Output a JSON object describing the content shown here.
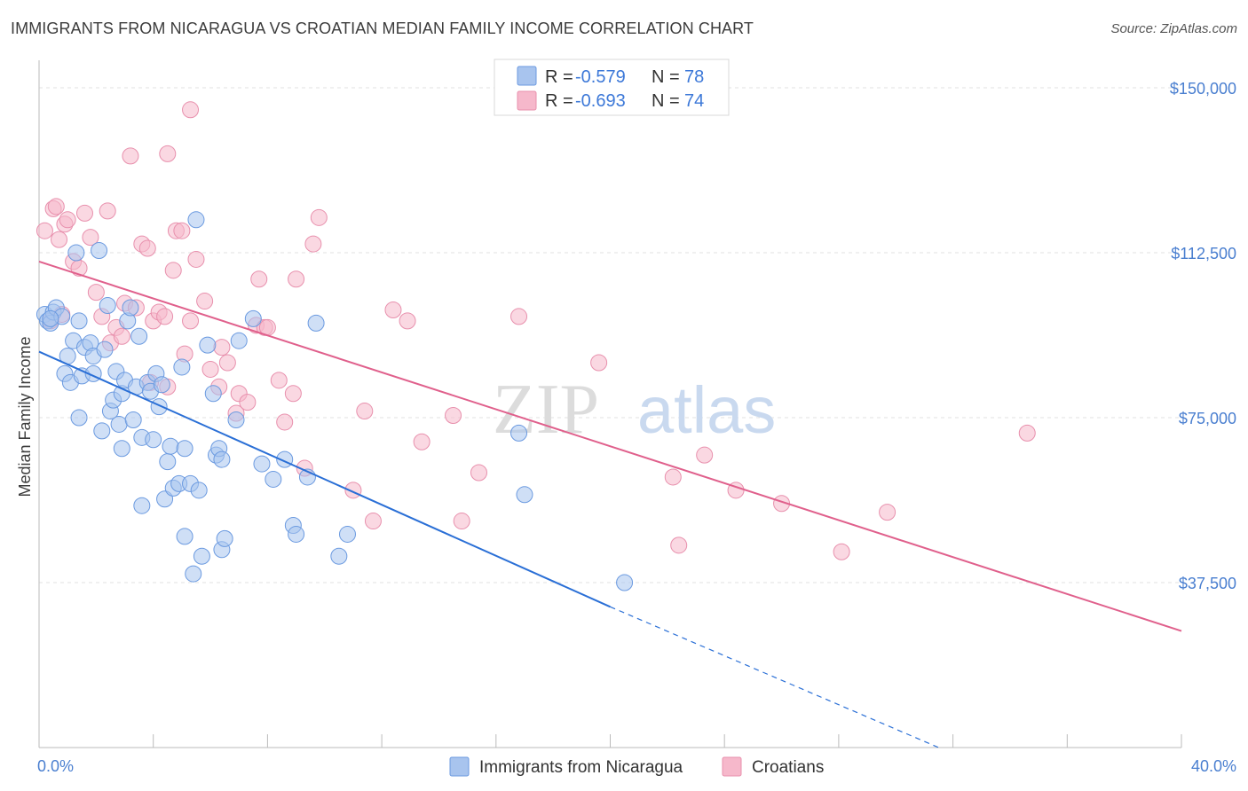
{
  "header": {
    "title": "IMMIGRANTS FROM NICARAGUA VS CROATIAN MEDIAN FAMILY INCOME CORRELATION CHART",
    "source": "Source: ZipAtlas.com"
  },
  "watermark": {
    "part1": "ZIP",
    "part2": "atlas"
  },
  "legend_top": [
    {
      "r_label": "R =",
      "r_value": "-0.579",
      "n_label": "N =",
      "n_value": "78",
      "color": "#a8c4ee"
    },
    {
      "r_label": "R =",
      "r_value": "-0.693",
      "n_label": "N =",
      "n_value": "74",
      "color": "#f6b8cb"
    }
  ],
  "legend_bottom": [
    {
      "label": "Immigrants from Nicaragua",
      "color": "#a8c4ee"
    },
    {
      "label": "Croatians",
      "color": "#f6b8cb"
    }
  ],
  "colors": {
    "blue_fill": "#a8c4ee",
    "blue_stroke": "#6b9ae0",
    "blue_line": "#2a6fd6",
    "pink_fill": "#f6b8cb",
    "pink_stroke": "#e890ad",
    "pink_line": "#e0608c",
    "grid": "#e2e2e2",
    "tick_text": "#4a7fd0"
  },
  "chart_data": {
    "type": "scatter",
    "ylabel": "Median Family Income",
    "xlabel": "",
    "x_tick_labels": [
      "0.0%",
      "40.0%"
    ],
    "y_tick_labels": [
      "$37,500",
      "$75,000",
      "$112,500",
      "$150,000"
    ],
    "y_ticks": [
      37500,
      75000,
      112500,
      150000
    ],
    "xlim": [
      0,
      40
    ],
    "ylim": [
      0,
      156250
    ],
    "grid": true,
    "series": [
      {
        "name": "Immigrants from Nicaragua",
        "trend": {
          "x1": 0,
          "y1": 90000,
          "x2": 20,
          "y2": 32000,
          "dash_to_x": 31.5,
          "dash_to_y": 0
        },
        "points": [
          [
            0.2,
            98500
          ],
          [
            0.3,
            97000
          ],
          [
            0.4,
            96500
          ],
          [
            0.5,
            99000
          ],
          [
            0.6,
            100000
          ],
          [
            0.8,
            98000
          ],
          [
            0.9,
            85000
          ],
          [
            1.0,
            89000
          ],
          [
            1.1,
            83000
          ],
          [
            1.2,
            92500
          ],
          [
            1.3,
            112500
          ],
          [
            1.4,
            97000
          ],
          [
            1.5,
            84500
          ],
          [
            1.6,
            91000
          ],
          [
            1.4,
            75000
          ],
          [
            1.8,
            92000
          ],
          [
            1.9,
            85000
          ],
          [
            1.9,
            89000
          ],
          [
            2.1,
            113000
          ],
          [
            2.2,
            72000
          ],
          [
            2.3,
            90500
          ],
          [
            2.4,
            100500
          ],
          [
            2.5,
            76500
          ],
          [
            2.6,
            79000
          ],
          [
            2.7,
            85500
          ],
          [
            2.8,
            73500
          ],
          [
            2.9,
            80500
          ],
          [
            3.0,
            83500
          ],
          [
            2.9,
            68000
          ],
          [
            3.1,
            97000
          ],
          [
            3.2,
            100000
          ],
          [
            3.3,
            74500
          ],
          [
            3.4,
            82000
          ],
          [
            3.5,
            93500
          ],
          [
            3.6,
            70500
          ],
          [
            3.6,
            55000
          ],
          [
            3.8,
            83000
          ],
          [
            3.9,
            81000
          ],
          [
            4.0,
            70000
          ],
          [
            4.1,
            85000
          ],
          [
            4.2,
            77500
          ],
          [
            4.3,
            82500
          ],
          [
            4.4,
            56500
          ],
          [
            4.5,
            65000
          ],
          [
            4.6,
            68500
          ],
          [
            4.7,
            59000
          ],
          [
            4.9,
            60000
          ],
          [
            5.0,
            86500
          ],
          [
            5.1,
            68000
          ],
          [
            5.1,
            48000
          ],
          [
            5.3,
            60000
          ],
          [
            5.5,
            120000
          ],
          [
            5.6,
            58500
          ],
          [
            5.7,
            43500
          ],
          [
            5.9,
            91500
          ],
          [
            5.4,
            39500
          ],
          [
            6.1,
            80500
          ],
          [
            6.2,
            66500
          ],
          [
            6.3,
            68000
          ],
          [
            6.4,
            65500
          ],
          [
            6.4,
            45000
          ],
          [
            6.5,
            47500
          ],
          [
            6.9,
            74500
          ],
          [
            7.0,
            92500
          ],
          [
            7.5,
            97500
          ],
          [
            7.8,
            64500
          ],
          [
            8.2,
            61000
          ],
          [
            8.6,
            65500
          ],
          [
            8.9,
            50500
          ],
          [
            9.0,
            48500
          ],
          [
            9.4,
            61500
          ],
          [
            9.7,
            96500
          ],
          [
            10.5,
            43500
          ],
          [
            10.8,
            48500
          ],
          [
            16.8,
            71500
          ],
          [
            17.0,
            57500
          ],
          [
            20.5,
            37500
          ],
          [
            0.4,
            97500
          ]
        ]
      },
      {
        "name": "Croatians",
        "trend": {
          "x1": 0,
          "y1": 110500,
          "x2": 40,
          "y2": 26500
        },
        "points": [
          [
            0.2,
            117500
          ],
          [
            0.4,
            97000
          ],
          [
            0.5,
            122500
          ],
          [
            0.6,
            123000
          ],
          [
            0.7,
            115500
          ],
          [
            0.8,
            98500
          ],
          [
            0.9,
            119000
          ],
          [
            1.0,
            120000
          ],
          [
            1.2,
            110500
          ],
          [
            1.4,
            109000
          ],
          [
            1.6,
            121500
          ],
          [
            1.8,
            116000
          ],
          [
            2.0,
            103500
          ],
          [
            2.2,
            98000
          ],
          [
            2.4,
            122000
          ],
          [
            2.5,
            92000
          ],
          [
            2.7,
            95500
          ],
          [
            2.9,
            93500
          ],
          [
            3.0,
            101000
          ],
          [
            3.2,
            134500
          ],
          [
            3.4,
            100000
          ],
          [
            3.6,
            114500
          ],
          [
            3.8,
            113500
          ],
          [
            3.9,
            83000
          ],
          [
            4.0,
            97000
          ],
          [
            4.2,
            99000
          ],
          [
            4.4,
            98000
          ],
          [
            4.5,
            82000
          ],
          [
            4.7,
            108500
          ],
          [
            4.8,
            117500
          ],
          [
            5.0,
            117500
          ],
          [
            5.1,
            89500
          ],
          [
            5.3,
            97000
          ],
          [
            5.5,
            111000
          ],
          [
            5.8,
            101500
          ],
          [
            6.0,
            86000
          ],
          [
            6.3,
            82000
          ],
          [
            6.4,
            91000
          ],
          [
            6.6,
            87500
          ],
          [
            6.9,
            76000
          ],
          [
            7.0,
            80500
          ],
          [
            7.3,
            78500
          ],
          [
            7.6,
            96000
          ],
          [
            7.7,
            106500
          ],
          [
            7.9,
            95500
          ],
          [
            8.0,
            95500
          ],
          [
            8.4,
            83500
          ],
          [
            8.6,
            74000
          ],
          [
            8.9,
            80500
          ],
          [
            9.0,
            106500
          ],
          [
            9.3,
            63500
          ],
          [
            9.6,
            114500
          ],
          [
            9.8,
            120500
          ],
          [
            11.0,
            58500
          ],
          [
            11.4,
            76500
          ],
          [
            11.7,
            51500
          ],
          [
            12.4,
            99500
          ],
          [
            12.9,
            97000
          ],
          [
            13.4,
            69500
          ],
          [
            14.5,
            75500
          ],
          [
            14.8,
            51500
          ],
          [
            15.4,
            62500
          ],
          [
            16.8,
            98000
          ],
          [
            19.6,
            87500
          ],
          [
            22.2,
            61500
          ],
          [
            22.4,
            46000
          ],
          [
            23.3,
            66500
          ],
          [
            24.4,
            58500
          ],
          [
            26.0,
            55500
          ],
          [
            28.1,
            44500
          ],
          [
            29.7,
            53500
          ],
          [
            34.6,
            71500
          ],
          [
            4.5,
            135000
          ],
          [
            5.3,
            145000
          ]
        ]
      }
    ]
  }
}
